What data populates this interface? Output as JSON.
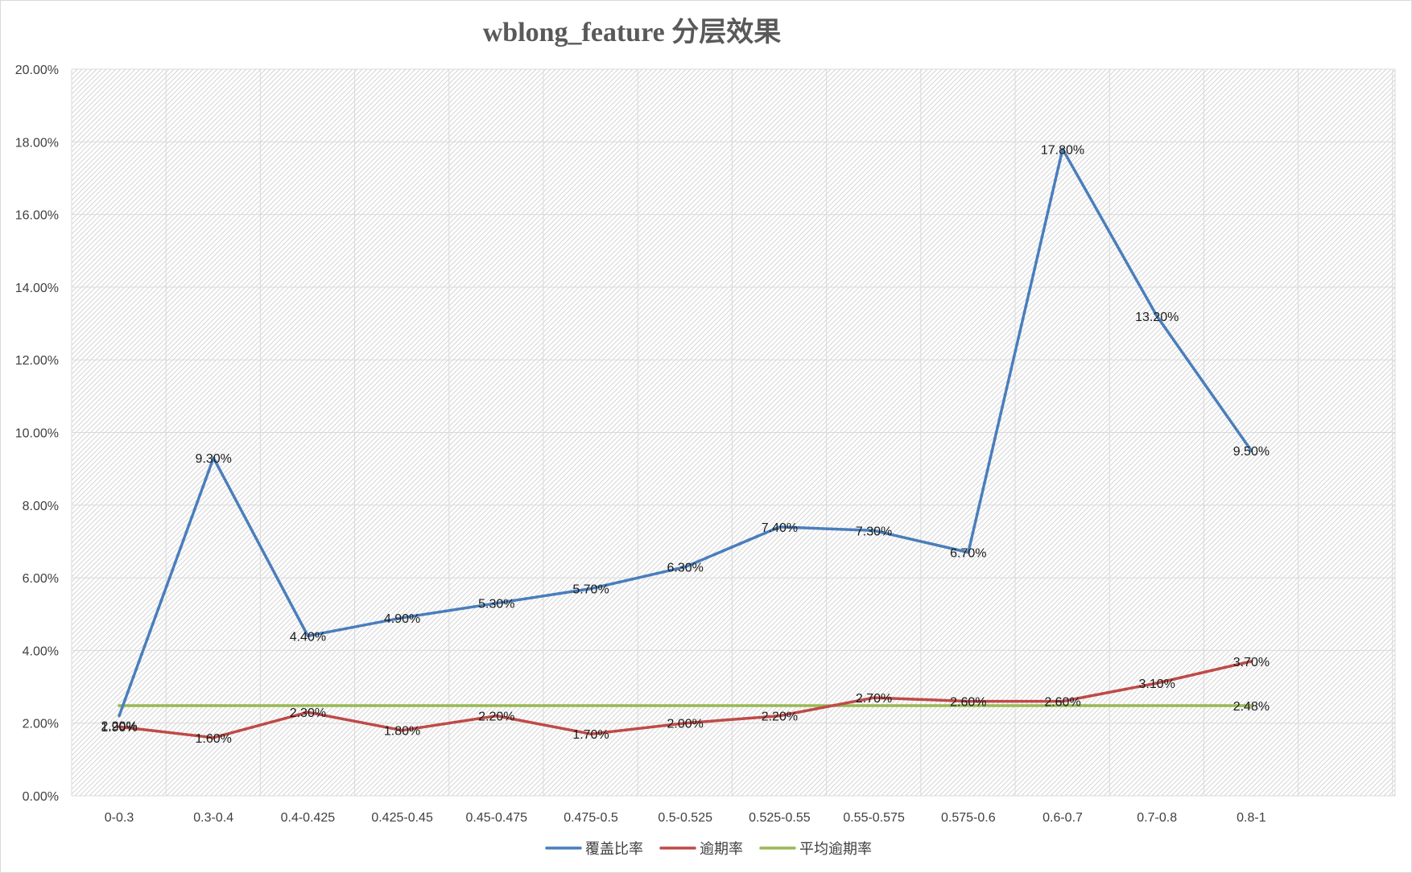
{
  "chart_data": {
    "type": "line",
    "title": "wblong_feature 分层效果",
    "categories": [
      "0-0.3",
      "0.3-0.4",
      "0.4-0.425",
      "0.425-0.45",
      "0.45-0.475",
      "0.475-0.5",
      "0.5-0.525",
      "0.525-0.55",
      "0.55-0.575",
      "0.575-0.6",
      "0.6-0.7",
      "0.7-0.8",
      "0.8-1"
    ],
    "ylim": [
      0,
      20
    ],
    "yticks": [
      "0.00%",
      "2.00%",
      "4.00%",
      "6.00%",
      "8.00%",
      "10.00%",
      "12.00%",
      "14.00%",
      "16.00%",
      "18.00%",
      "20.00%"
    ],
    "grid": true,
    "legend_position": "bottom",
    "series": [
      {
        "name": "覆盖比率",
        "color": "#4a7ebb",
        "values": [
          2.2,
          9.3,
          4.4,
          4.9,
          5.3,
          5.7,
          6.3,
          7.4,
          7.3,
          6.7,
          17.8,
          13.2,
          9.5
        ],
        "labels": [
          "2.20%",
          "9.30%",
          "4.40%",
          "4.90%",
          "5.30%",
          "5.70%",
          "6.30%",
          "7.40%",
          "7.30%",
          "6.70%",
          "17.80%",
          "13.20%",
          "9.50%"
        ]
      },
      {
        "name": "逾期率",
        "color": "#be4b48",
        "values": [
          1.9,
          1.6,
          2.3,
          1.8,
          2.2,
          1.7,
          2.0,
          2.2,
          2.7,
          2.6,
          2.6,
          3.1,
          3.7
        ],
        "labels": [
          "1.90%",
          "1.60%",
          "2.30%",
          "1.80%",
          "2.20%",
          "1.70%",
          "2.00%",
          "2.20%",
          "2.70%",
          "2.60%",
          "2.60%",
          "3.10%",
          "3.70%"
        ]
      },
      {
        "name": "平均逾期率",
        "color": "#98b954",
        "values": [
          2.48,
          2.48,
          2.48,
          2.48,
          2.48,
          2.48,
          2.48,
          2.48,
          2.48,
          2.48,
          2.48,
          2.48,
          2.48
        ],
        "labels": [
          "",
          "",
          "",
          "",
          "",
          "",
          "",
          "",
          "",
          "",
          "",
          "",
          "2.48%"
        ]
      }
    ]
  }
}
